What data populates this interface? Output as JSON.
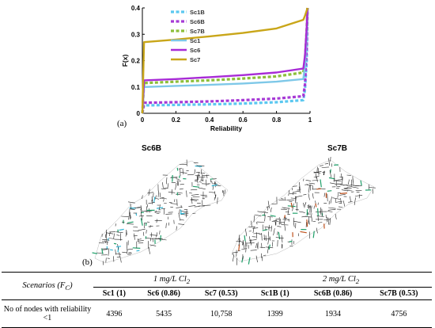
{
  "chart_data": {
    "type": "line",
    "ylabel": "F(x)",
    "xlabel": "Reliability",
    "xlim": [
      0,
      1
    ],
    "ylim": [
      0,
      0.4
    ],
    "x_ticks": [
      "0",
      "0.2",
      "0.4",
      "0.6",
      "0.8",
      "1"
    ],
    "y_ticks": [
      "0",
      "0.1",
      "0.2",
      "0.3",
      "0.4"
    ],
    "legend_position": "top-right",
    "series": [
      {
        "name": "Sc1B",
        "color": "#5bc8f0",
        "dashed": true,
        "x": [
          0,
          0.01,
          0.2,
          0.4,
          0.6,
          0.8,
          0.96,
          0.97,
          0.98,
          0.985
        ],
        "y": [
          0,
          0.03,
          0.032,
          0.034,
          0.037,
          0.042,
          0.05,
          0.09,
          0.2,
          0.4
        ]
      },
      {
        "name": "Sc6B",
        "color": "#a63ad6",
        "dashed": true,
        "x": [
          0,
          0.01,
          0.2,
          0.4,
          0.6,
          0.8,
          0.96,
          0.97,
          0.98,
          0.985
        ],
        "y": [
          0,
          0.04,
          0.042,
          0.045,
          0.05,
          0.056,
          0.065,
          0.11,
          0.25,
          0.4
        ]
      },
      {
        "name": "Sc7B",
        "color": "#8cbf3a",
        "dashed": true,
        "x": [
          0,
          0.01,
          0.2,
          0.4,
          0.6,
          0.8,
          0.96,
          0.97,
          0.98,
          0.985
        ],
        "y": [
          0,
          0.115,
          0.12,
          0.125,
          0.132,
          0.14,
          0.155,
          0.2,
          0.32,
          0.4
        ]
      },
      {
        "name": "Sc1",
        "color": "#7ec8e8",
        "dashed": false,
        "x": [
          0,
          0.01,
          0.2,
          0.4,
          0.6,
          0.8,
          0.96,
          0.97,
          0.98,
          0.985
        ],
        "y": [
          0,
          0.1,
          0.104,
          0.108,
          0.113,
          0.12,
          0.13,
          0.18,
          0.3,
          0.4
        ]
      },
      {
        "name": "Sc6",
        "color": "#a82bd6",
        "dashed": false,
        "x": [
          0,
          0.01,
          0.2,
          0.4,
          0.6,
          0.8,
          0.96,
          0.97,
          0.98,
          0.985
        ],
        "y": [
          0,
          0.125,
          0.13,
          0.137,
          0.145,
          0.155,
          0.17,
          0.22,
          0.33,
          0.4
        ]
      },
      {
        "name": "Sc7",
        "color": "#c9a619",
        "dashed": false,
        "x": [
          0,
          0.01,
          0.2,
          0.4,
          0.6,
          0.8,
          0.96,
          0.97,
          0.98,
          0.985
        ],
        "y": [
          0,
          0.27,
          0.28,
          0.292,
          0.305,
          0.322,
          0.355,
          0.37,
          0.39,
          0.4
        ]
      }
    ]
  },
  "panel_labels": {
    "a": "(a)",
    "b": "(b)"
  },
  "maps": {
    "left_title": "Sc6B",
    "right_title": "Sc7B"
  },
  "table": {
    "scenario_header": "Scenarios (F",
    "scenario_header_sub": "C",
    "scenario_header_end": ")",
    "group1": "1 mg/L Cl",
    "group1_sub": "2",
    "group2": "2 mg/L Cl",
    "group2_sub": "2",
    "columns": [
      "Sc1 (1)",
      "Sc6 (0.86)",
      "Sc7 (0.53)",
      "Sc1B (1)",
      "Sc6B (0.86)",
      "Sc7B (0.53)"
    ],
    "row_label": "No of nodes with reliability <1",
    "values": [
      "4396",
      "5435",
      "10,758",
      "1399",
      "1934",
      "4756"
    ]
  }
}
